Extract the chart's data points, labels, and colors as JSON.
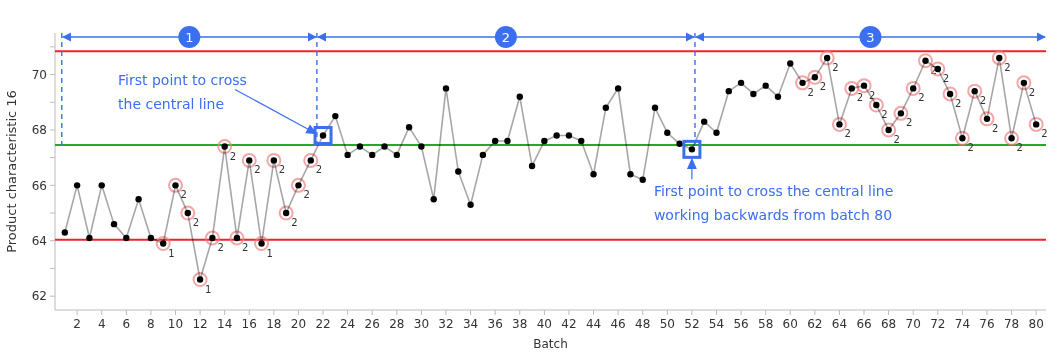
{
  "chart_data": {
    "type": "line",
    "xlabel": "Batch",
    "ylabel": "Product characteristic 16",
    "x": [
      1,
      2,
      3,
      4,
      5,
      6,
      7,
      8,
      9,
      10,
      11,
      12,
      13,
      14,
      15,
      16,
      17,
      18,
      19,
      20,
      21,
      22,
      23,
      24,
      25,
      26,
      27,
      28,
      29,
      30,
      31,
      32,
      33,
      34,
      35,
      36,
      37,
      38,
      39,
      40,
      41,
      42,
      43,
      44,
      45,
      46,
      47,
      48,
      49,
      50,
      51,
      52,
      53,
      54,
      55,
      56,
      57,
      58,
      59,
      60,
      61,
      62,
      63,
      64,
      65,
      66,
      67,
      68,
      69,
      70,
      71,
      72,
      73,
      74,
      75,
      76,
      77,
      78,
      79,
      80
    ],
    "series": [
      {
        "color": "#000000",
        "values": [
          64.3,
          66.0,
          64.1,
          66.0,
          64.6,
          64.1,
          65.5,
          64.1,
          63.9,
          66.0,
          65.0,
          62.6,
          64.1,
          67.4,
          64.1,
          66.9,
          63.9,
          66.9,
          65.0,
          66.0,
          66.9,
          67.8,
          68.5,
          67.1,
          67.4,
          67.1,
          67.4,
          67.1,
          68.1,
          67.4,
          65.5,
          69.5,
          66.5,
          65.3,
          67.1,
          67.6,
          67.6,
          69.2,
          66.7,
          67.6,
          67.8,
          67.8,
          67.6,
          66.4,
          68.8,
          69.5,
          66.4,
          66.2,
          68.8,
          67.9,
          67.5,
          67.3,
          68.3,
          67.9,
          69.4,
          69.7,
          69.3,
          69.6,
          69.2,
          70.4,
          69.7,
          69.9,
          70.6,
          68.2,
          69.5,
          69.6,
          68.9,
          68.0,
          68.6,
          69.5,
          70.5,
          70.2,
          69.3,
          67.7,
          69.4,
          68.4,
          70.6,
          67.7,
          69.7,
          68.2
        ]
      }
    ],
    "marker": "circle",
    "line_style": "solid",
    "grid": false,
    "xlim": [
      0.2,
      80.8
    ],
    "xticks": [
      2,
      4,
      6,
      8,
      10,
      12,
      14,
      16,
      18,
      20,
      22,
      24,
      26,
      28,
      30,
      32,
      34,
      36,
      38,
      40,
      42,
      44,
      46,
      48,
      50,
      52,
      54,
      56,
      58,
      60,
      62,
      64,
      66,
      68,
      70,
      72,
      74,
      76,
      78,
      80
    ],
    "ylim": [
      61.5,
      71.5
    ],
    "yticks": [
      62,
      {
        "value": 63,
        "label": null
      },
      64,
      {
        "value": 65,
        "label": null
      },
      66,
      {
        "value": 67,
        "label": null
      },
      68,
      {
        "value": 69,
        "label": null
      },
      70,
      {
        "value": 71,
        "label": null
      }
    ],
    "ref_lines": [
      {
        "axis": "y",
        "value": 70.84,
        "color": "#e8262b",
        "line_style": "solid"
      },
      {
        "axis": "y",
        "value": 67.46,
        "color": "#22a82a",
        "line_style": "solid"
      },
      {
        "axis": "y",
        "value": 64.04,
        "color": "#e8262b",
        "line_style": "solid"
      },
      {
        "axis": "x",
        "value": 0.75,
        "color": "#3a6ff0",
        "line_style": "dashed"
      },
      {
        "axis": "x",
        "value": 21.5,
        "color": "#3a6ff0",
        "line_style": "dashed"
      },
      {
        "axis": "x",
        "value": 52.25,
        "color": "#3a6ff0",
        "line_style": "dashed"
      }
    ],
    "annotations": [
      "1",
      "2",
      "3",
      "First point to cross\nthe central line",
      {
        "text": "First point to cross the central line\nworking backwards from batch 80",
        "x": 52,
        "y": 67.3
      },
      {
        "text": "1",
        "x": 9,
        "y": 63.9
      },
      {
        "text": "2",
        "x": 10,
        "y": 66.0
      },
      {
        "text": "2",
        "x": 11,
        "y": 65.0
      },
      {
        "text": "1",
        "x": 12,
        "y": 62.6
      },
      {
        "text": "2",
        "x": 13,
        "y": 64.1
      },
      {
        "text": "2",
        "x": 14,
        "y": 67.4
      },
      {
        "text": "2",
        "x": 15,
        "y": 64.1
      },
      {
        "text": "2",
        "x": 16,
        "y": 66.9
      },
      {
        "text": "1",
        "x": 17,
        "y": 63.9
      },
      {
        "text": "2",
        "x": 18,
        "y": 66.9
      },
      {
        "text": "2",
        "x": 19,
        "y": 65.0
      },
      {
        "text": "2",
        "x": 20,
        "y": 66.0
      },
      {
        "text": "2",
        "x": 21,
        "y": 66.9
      },
      {
        "text": "2",
        "x": 61,
        "y": 69.7
      },
      {
        "text": "2",
        "x": 62,
        "y": 69.9
      },
      {
        "text": "2",
        "x": 63,
        "y": 70.6
      },
      {
        "text": "2",
        "x": 64,
        "y": 68.2
      },
      {
        "text": "2",
        "x": 65,
        "y": 69.5
      },
      {
        "text": "2",
        "x": 66,
        "y": 69.6
      },
      {
        "text": "2",
        "x": 67,
        "y": 68.9
      },
      {
        "text": "2",
        "x": 68,
        "y": 68.0
      },
      {
        "text": "2",
        "x": 69,
        "y": 68.6
      },
      {
        "text": "2",
        "x": 70,
        "y": 69.5
      },
      {
        "text": "2",
        "x": 71,
        "y": 70.5
      },
      {
        "text": "2",
        "x": 72,
        "y": 70.2
      },
      {
        "text": "2",
        "x": 73,
        "y": 69.3
      },
      {
        "text": "2",
        "x": 74,
        "y": 67.7
      },
      {
        "text": "2",
        "x": 75,
        "y": 69.4
      },
      {
        "text": "2",
        "x": 76,
        "y": 68.4
      },
      {
        "text": "2",
        "x": 77,
        "y": 70.6
      },
      {
        "text": "2",
        "x": 78,
        "y": 67.7
      },
      {
        "text": "2",
        "x": 79,
        "y": 69.7
      },
      {
        "text": "2",
        "x": 80,
        "y": 68.2
      }
    ]
  }
}
